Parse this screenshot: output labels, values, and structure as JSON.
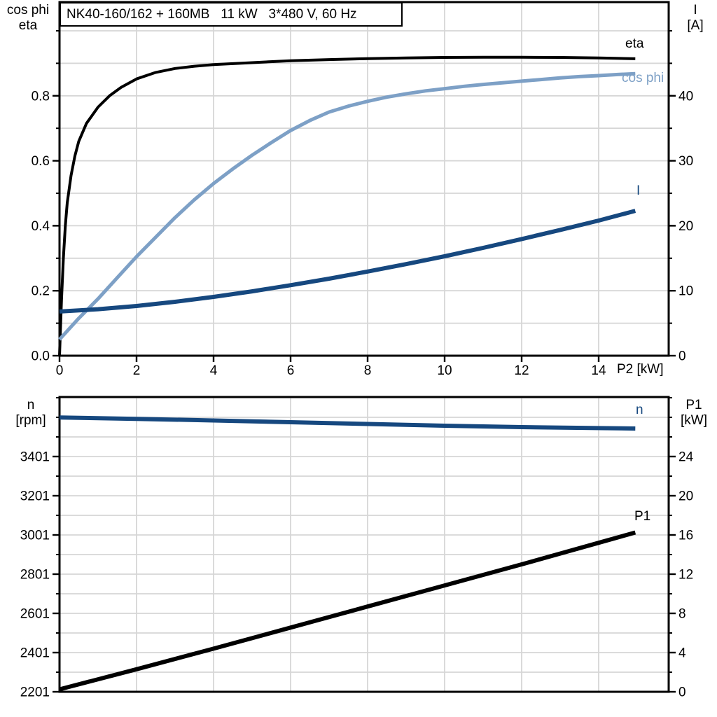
{
  "title": "NK40-160/162 + 160MB   11 kW   3*480 V, 60 Hz",
  "labels": {
    "top_left": [
      "cos phi",
      "eta"
    ],
    "top_right": [
      "I",
      "[A]"
    ],
    "bottom_left": [
      "n",
      "[rpm]"
    ],
    "bottom_right": [
      "P1",
      "[kW]"
    ],
    "x_axis": "P2 [kW]"
  },
  "curve_labels": {
    "eta": "eta",
    "cos_phi": "cos phi",
    "i": "I",
    "n": "n",
    "p1": "P1"
  },
  "colors": {
    "black": "#000000",
    "light_blue": "#7da0c6",
    "dark_blue": "#16487f",
    "grid": "#d6d6d6",
    "frame": "#000000"
  },
  "chart_data": [
    {
      "id": "top",
      "type": "line",
      "title": "Motor efficiency, power factor and current vs shaft power",
      "x_axis": {
        "label": "P2 [kW]",
        "tick_values": [
          0,
          2,
          4,
          6,
          8,
          10,
          12,
          14
        ],
        "tick_labels": [
          "0",
          "2",
          "4",
          "6",
          "8",
          "10",
          "12",
          "14"
        ],
        "range": [
          0,
          15.8
        ],
        "show_tick_labels": true,
        "grid": true
      },
      "left_axis": {
        "label": "cos phi / eta",
        "tick_values": [
          0,
          0.2,
          0.4,
          0.6,
          0.8
        ],
        "tick_labels": [
          "0.0",
          "0.2",
          "0.4",
          "0.6",
          "0.8"
        ],
        "minor_step": 0.1,
        "range": [
          0,
          1.09
        ],
        "grid": true
      },
      "right_axis": {
        "label": "I [A]",
        "tick_values": [
          0,
          10,
          20,
          30,
          40
        ],
        "tick_labels": [
          "0",
          "10",
          "20",
          "30",
          "40"
        ],
        "minor_step": 5,
        "range": [
          0,
          54.4
        ]
      },
      "series": [
        {
          "name": "eta",
          "axis": "left",
          "color_key": "black",
          "x": [
            0,
            0.05,
            0.1,
            0.15,
            0.2,
            0.3,
            0.4,
            0.5,
            0.7,
            1,
            1.3,
            1.6,
            2,
            2.5,
            3,
            3.5,
            4,
            4.5,
            5,
            6,
            7,
            8,
            9,
            10,
            11,
            12,
            13,
            14,
            14.95
          ],
          "y": [
            0,
            0.17,
            0.3,
            0.4,
            0.47,
            0.555,
            0.615,
            0.66,
            0.715,
            0.765,
            0.8,
            0.826,
            0.852,
            0.872,
            0.884,
            0.891,
            0.896,
            0.899,
            0.902,
            0.908,
            0.9115,
            0.9145,
            0.9165,
            0.918,
            0.9185,
            0.9185,
            0.918,
            0.9165,
            0.914
          ]
        },
        {
          "name": "cos phi",
          "axis": "left",
          "color_key": "light_blue",
          "x": [
            0,
            0.5,
            1,
            1.5,
            2,
            2.5,
            3,
            3.5,
            4,
            4.5,
            5,
            5.5,
            6,
            6.5,
            7,
            7.5,
            8,
            8.5,
            9,
            9.5,
            10,
            10.5,
            11,
            11.5,
            12,
            12.5,
            13,
            13.5,
            14,
            14.5,
            14.95
          ],
          "y": [
            0.05,
            0.115,
            0.175,
            0.24,
            0.305,
            0.365,
            0.425,
            0.48,
            0.53,
            0.575,
            0.617,
            0.656,
            0.693,
            0.724,
            0.75,
            0.768,
            0.783,
            0.796,
            0.806,
            0.815,
            0.822,
            0.829,
            0.835,
            0.84,
            0.845,
            0.85,
            0.855,
            0.859,
            0.862,
            0.8655,
            0.868
          ]
        },
        {
          "name": "I",
          "axis": "right",
          "color_key": "dark_blue",
          "x": [
            0,
            1,
            2,
            3,
            4,
            5,
            6,
            7,
            8,
            9,
            10,
            11,
            12,
            13,
            14,
            14.95
          ],
          "y": [
            6.8,
            7.15,
            7.65,
            8.3,
            9.05,
            9.9,
            10.85,
            11.85,
            12.95,
            14.1,
            15.3,
            16.6,
            17.95,
            19.35,
            20.8,
            22.3
          ]
        }
      ]
    },
    {
      "id": "bottom",
      "type": "line",
      "title": "Motor speed and input power vs shaft power",
      "x_axis": {
        "label": "",
        "tick_values": [
          0,
          2,
          4,
          6,
          8,
          10,
          12,
          14
        ],
        "tick_labels": [
          "",
          "",
          "",
          "",
          "",
          "",
          "",
          ""
        ],
        "range": [
          0,
          15.8
        ],
        "show_tick_labels": false,
        "grid": true
      },
      "left_axis": {
        "label": "n [rpm]",
        "tick_values": [
          2201,
          2401,
          2601,
          2801,
          3001,
          3201,
          3401
        ],
        "tick_labels": [
          "2201",
          "2401",
          "2601",
          "2801",
          "3001",
          "3201",
          "3401"
        ],
        "minor_step": 100,
        "range": [
          2201,
          3704
        ],
        "grid": true
      },
      "right_axis": {
        "label": "P1 [kW]",
        "tick_values": [
          0,
          4,
          8,
          12,
          16,
          20,
          24
        ],
        "tick_labels": [
          "0",
          "4",
          "8",
          "12",
          "16",
          "20",
          "24"
        ],
        "minor_step": 2,
        "range": [
          0,
          30.1
        ]
      },
      "series": [
        {
          "name": "n",
          "axis": "left",
          "color_key": "dark_blue",
          "x": [
            0,
            2,
            4,
            6,
            8,
            10,
            12,
            14,
            14.95
          ],
          "y": [
            3600,
            3593,
            3585,
            3576,
            3567,
            3558,
            3551,
            3546,
            3544
          ]
        },
        {
          "name": "P1",
          "axis": "right",
          "color_key": "black",
          "x": [
            0,
            2,
            4,
            6,
            8,
            10,
            12,
            14,
            14.95
          ],
          "y": [
            0.25,
            2.3,
            4.4,
            6.55,
            8.7,
            10.85,
            13.0,
            15.2,
            16.25
          ]
        }
      ]
    }
  ]
}
